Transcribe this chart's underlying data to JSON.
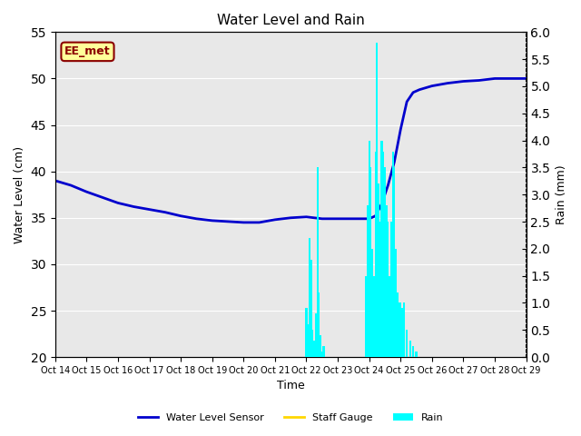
{
  "title": "Water Level and Rain",
  "xlabel": "Time",
  "ylabel_left": "Water Level (cm)",
  "ylabel_right": "Rain (mm)",
  "xlim": [
    0,
    15
  ],
  "ylim_left": [
    20,
    55
  ],
  "ylim_right": [
    0.0,
    6.0
  ],
  "yticks_left": [
    20,
    25,
    30,
    35,
    40,
    45,
    50,
    55
  ],
  "yticks_right": [
    0.0,
    0.5,
    1.0,
    1.5,
    2.0,
    2.5,
    3.0,
    3.5,
    4.0,
    4.5,
    5.0,
    5.5,
    6.0
  ],
  "xtick_labels": [
    "Oct 14",
    "Oct 15",
    "Oct 16",
    "Oct 17",
    "Oct 18",
    "Oct 19",
    "Oct 20",
    "Oct 21",
    "Oct 22",
    "Oct 23",
    "Oct 24",
    "Oct 25",
    "Oct 26",
    "Oct 27",
    "Oct 28",
    "Oct 29"
  ],
  "water_level_color": "#0000CD",
  "rain_color": "#00FFFF",
  "staff_gauge_color": "#FFD700",
  "background_color": "#E8E8E8",
  "annotation_text": "EE_met",
  "annotation_color": "#8B0000",
  "annotation_bg": "#FFFF99",
  "legend_items": [
    "Water Level Sensor",
    "Staff Gauge",
    "Rain"
  ],
  "water_level_x": [
    0,
    0.5,
    1.0,
    1.5,
    2.0,
    2.5,
    3.0,
    3.5,
    4.0,
    4.5,
    5.0,
    5.5,
    6.0,
    6.5,
    7.0,
    7.5,
    8.0,
    8.5,
    9.0,
    9.5,
    10.0,
    10.2,
    10.4,
    10.6,
    10.8,
    11.0,
    11.2,
    11.4,
    11.6,
    11.8,
    12.0,
    12.5,
    13.0,
    13.5,
    14.0,
    14.5,
    15.0
  ],
  "water_level_y": [
    39.0,
    38.5,
    37.8,
    37.2,
    36.6,
    36.2,
    35.9,
    35.6,
    35.2,
    34.9,
    34.7,
    34.6,
    34.5,
    34.5,
    34.8,
    35.0,
    35.1,
    34.9,
    34.9,
    34.9,
    34.9,
    35.2,
    36.5,
    38.5,
    41.0,
    44.5,
    47.5,
    48.5,
    48.8,
    49.0,
    49.2,
    49.5,
    49.7,
    49.8,
    50.0,
    50.0,
    50.0
  ],
  "rain_x": [
    8.0,
    8.05,
    8.1,
    8.15,
    8.2,
    8.25,
    8.3,
    8.35,
    8.4,
    8.45,
    8.5,
    8.55,
    8.6,
    9.9,
    9.95,
    10.0,
    10.05,
    10.1,
    10.15,
    10.2,
    10.25,
    10.3,
    10.35,
    10.4,
    10.45,
    10.5,
    10.55,
    10.6,
    10.65,
    10.7,
    10.75,
    10.8,
    10.85,
    10.9,
    10.95,
    11.0,
    11.05,
    11.1,
    11.2,
    11.3,
    11.4,
    11.5,
    11.6,
    11.7
  ],
  "rain_values": [
    0.9,
    0.6,
    2.2,
    1.8,
    0.5,
    0.3,
    0.8,
    3.5,
    1.2,
    0.4,
    0.1,
    0.2,
    0.0,
    1.5,
    2.8,
    4.0,
    3.5,
    2.0,
    1.5,
    3.8,
    5.8,
    3.2,
    2.5,
    4.0,
    3.8,
    3.5,
    2.8,
    2.5,
    1.5,
    2.5,
    3.8,
    3.5,
    2.0,
    1.2,
    1.0,
    1.0,
    0.9,
    1.0,
    0.5,
    0.3,
    0.2,
    0.1,
    0.0,
    0.0
  ]
}
